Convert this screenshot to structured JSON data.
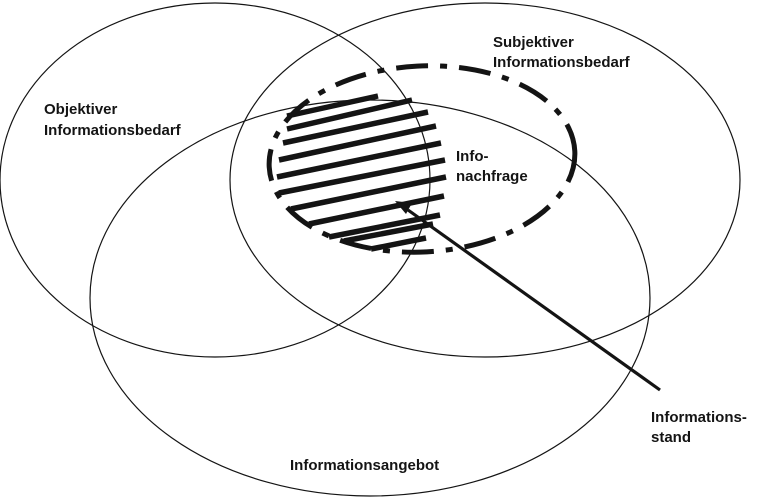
{
  "labels": {
    "objective": [
      "Objektiver",
      "Informationsbedarf"
    ],
    "subjective": [
      "Subjektiver",
      "Informationsbedarf"
    ],
    "demand": [
      "Info-",
      "nachfrage"
    ],
    "status": [
      "Informations-",
      "stand"
    ],
    "supply": "Informationsangebot"
  },
  "colors": {
    "line": "#141414",
    "background": "#ffffff"
  }
}
